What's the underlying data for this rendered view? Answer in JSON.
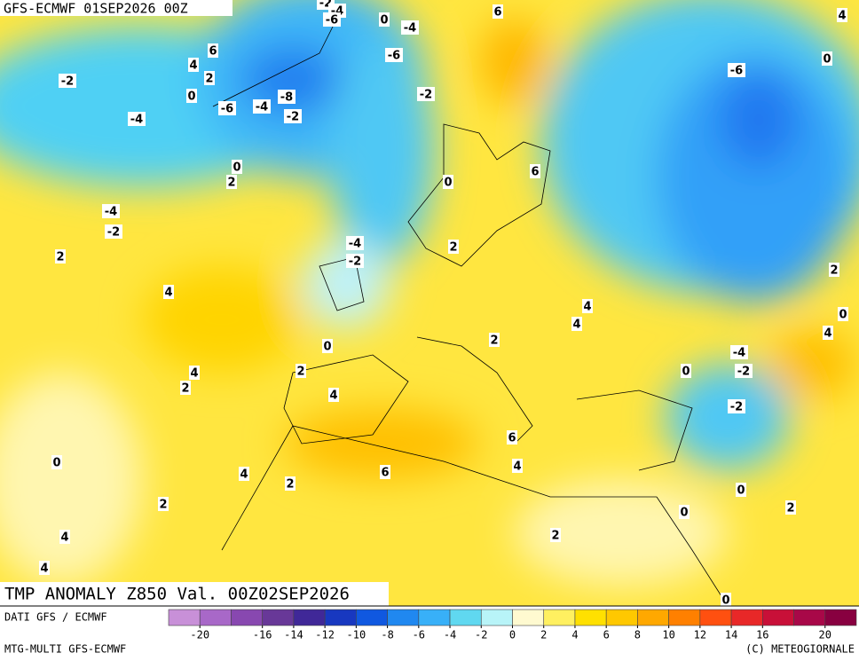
{
  "header": {
    "title": "GFS-ECMWF 01SEP2026 00Z"
  },
  "map": {
    "title": "TMP ANOMALY Z850 Val. 00Z02SEP2026",
    "contour_labels": [
      -2,
      -4,
      -6,
      0,
      -4,
      6,
      4,
      6,
      4,
      2,
      -2,
      0,
      -8,
      -6,
      -4,
      -2,
      -6,
      -2,
      -4,
      -6,
      0,
      0,
      2,
      6,
      0,
      -4,
      -2,
      2,
      -4,
      -2,
      2,
      4,
      4,
      4,
      2,
      0,
      2,
      0,
      4,
      -4,
      0,
      -2,
      4,
      2,
      2,
      4,
      -2,
      6,
      4,
      0,
      4,
      6,
      2,
      0,
      2,
      2,
      0,
      2,
      4,
      4,
      0
    ]
  },
  "footer": {
    "left_top": "DATI GFS / ECMWF",
    "left_bottom": "MTG-MULTI GFS-ECMWF",
    "right_bottom": "(C) METEOGIORNALE"
  },
  "colorbar": {
    "range": [
      -22,
      22
    ],
    "ticks": [
      -20,
      -16,
      -14,
      -12,
      -10,
      -8,
      -6,
      -4,
      -2,
      0,
      2,
      4,
      6,
      8,
      10,
      12,
      14,
      16,
      20
    ],
    "colors": [
      "#c890d8",
      "#a868c8",
      "#8848b0",
      "#683898",
      "#402898",
      "#1838c0",
      "#1058e0",
      "#2088f0",
      "#38b0f8",
      "#60d8f0",
      "#b8f4f8",
      "#fffad0",
      "#fff060",
      "#ffe000",
      "#ffc800",
      "#ffa800",
      "#ff8000",
      "#ff5010",
      "#e82828",
      "#c81038",
      "#a80848",
      "#880040"
    ]
  }
}
